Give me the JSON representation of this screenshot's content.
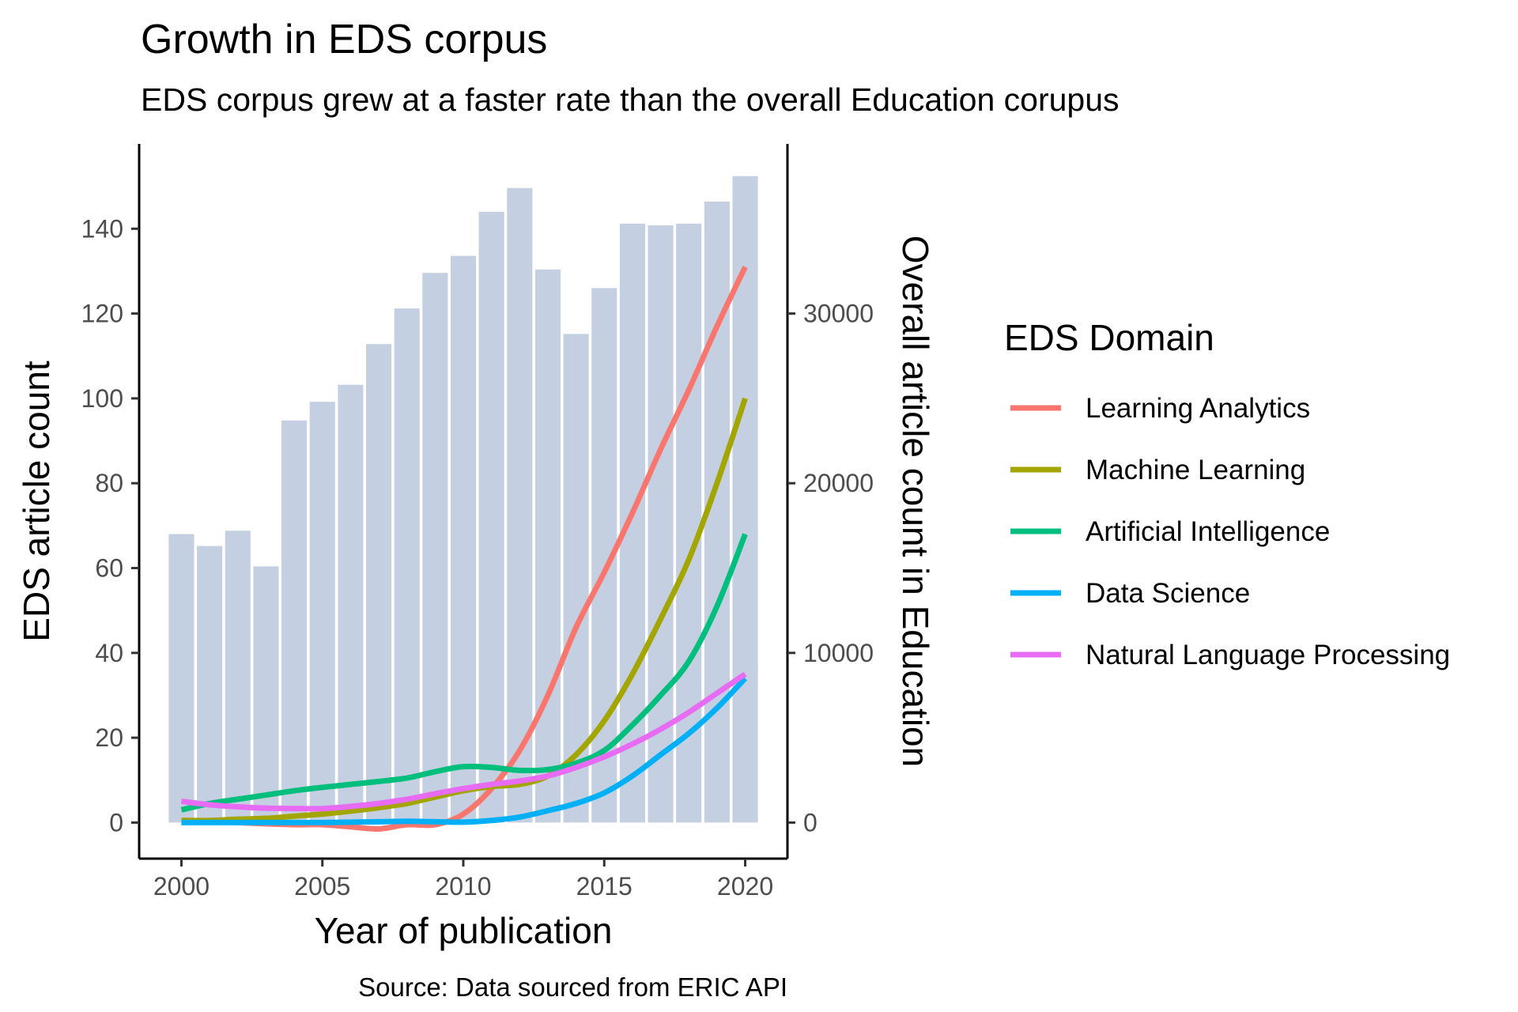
{
  "chart_data": {
    "type": "bar",
    "title": "Growth in EDS corpus",
    "subtitle": "EDS corpus grew at a faster rate than the overall Education corupus",
    "caption": "Source: Data sourced from ERIC API",
    "xlabel": "Year of publication",
    "ylabel": "EDS article count",
    "y2label": "Overall article count in Education",
    "x_ticks": [
      "2000",
      "2005",
      "2010",
      "2015",
      "2020"
    ],
    "y_ticks": [
      "0",
      "20",
      "40",
      "60",
      "80",
      "100",
      "120",
      "140"
    ],
    "y2_ticks": [
      "0",
      "10000",
      "20000",
      "30000"
    ],
    "xlim": [
      1998.5,
      2021.5
    ],
    "ylim": [
      -8.5,
      160
    ],
    "y2_scale_factor": 250,
    "grid": false,
    "legend_position": "right",
    "legend_title": "EDS Domain",
    "bar_color": "#c5cfe2",
    "bars": {
      "x": [
        2000,
        2001,
        2002,
        2003,
        2004,
        2005,
        2006,
        2007,
        2008,
        2009,
        2010,
        2011,
        2012,
        2013,
        2014,
        2015,
        2016,
        2017,
        2018,
        2019,
        2020
      ],
      "values": [
        17000,
        16300,
        17200,
        15100,
        23700,
        24800,
        25800,
        28200,
        30300,
        32400,
        33400,
        36000,
        37400,
        32600,
        28800,
        31500,
        35300,
        35200,
        35300,
        36600,
        38100
      ]
    },
    "series": [
      {
        "name": "Learning Analytics",
        "color": "#f8766d",
        "x": [
          2000,
          2001,
          2002,
          2003,
          2004,
          2005,
          2006,
          2007,
          2008,
          2009,
          2010,
          2011,
          2012,
          2013,
          2014,
          2015,
          2016,
          2017,
          2018,
          2019,
          2020
        ],
        "values": [
          0.5,
          0.3,
          0,
          -0.3,
          -0.5,
          -0.5,
          -1,
          -1.5,
          -0.5,
          -0.5,
          2,
          8,
          17,
          30,
          46,
          59,
          73,
          88,
          102,
          117,
          131
        ]
      },
      {
        "name": "Machine Learning",
        "color": "#a3a500",
        "x": [
          2000,
          2001,
          2002,
          2003,
          2004,
          2005,
          2006,
          2007,
          2008,
          2009,
          2010,
          2011,
          2012,
          2013,
          2014,
          2015,
          2016,
          2017,
          2018,
          2019,
          2020
        ],
        "values": [
          0.5,
          0.5,
          0.8,
          1,
          1.5,
          2,
          2.7,
          3.5,
          4.5,
          6,
          7.5,
          8.5,
          9,
          11,
          16,
          24,
          35,
          48,
          62,
          80,
          100
        ]
      },
      {
        "name": "Artificial Intelligence",
        "color": "#00bf7d",
        "x": [
          2000,
          2001,
          2002,
          2003,
          2004,
          2005,
          2006,
          2007,
          2008,
          2009,
          2010,
          2011,
          2012,
          2013,
          2014,
          2015,
          2016,
          2017,
          2018,
          2019,
          2020
        ],
        "values": [
          3,
          4.5,
          5.5,
          6.5,
          7.5,
          8.3,
          9,
          9.7,
          10.5,
          12,
          13.2,
          13,
          12.3,
          12.5,
          14,
          17,
          23,
          30,
          38,
          51,
          68
        ]
      },
      {
        "name": "Data Science",
        "color": "#00b0f6",
        "x": [
          2000,
          2001,
          2002,
          2003,
          2004,
          2005,
          2006,
          2007,
          2008,
          2009,
          2010,
          2011,
          2012,
          2013,
          2014,
          2015,
          2016,
          2017,
          2018,
          2019,
          2020
        ],
        "values": [
          0,
          0,
          0,
          0,
          0,
          0,
          0.1,
          0.2,
          0.3,
          0.2,
          0.1,
          0.5,
          1.3,
          2.8,
          4.5,
          7,
          11,
          16,
          21,
          27,
          34
        ]
      },
      {
        "name": "Natural Language Processing",
        "color": "#e76bf3",
        "x": [
          2000,
          2001,
          2002,
          2003,
          2004,
          2005,
          2006,
          2007,
          2008,
          2009,
          2010,
          2011,
          2012,
          2013,
          2014,
          2015,
          2016,
          2017,
          2018,
          2019,
          2020
        ],
        "values": [
          5,
          4.2,
          3.7,
          3.4,
          3.3,
          3.3,
          3.8,
          4.5,
          5.5,
          6.8,
          8,
          9,
          9.8,
          11,
          13,
          15.5,
          18.5,
          22,
          26,
          30.5,
          35
        ]
      }
    ]
  }
}
